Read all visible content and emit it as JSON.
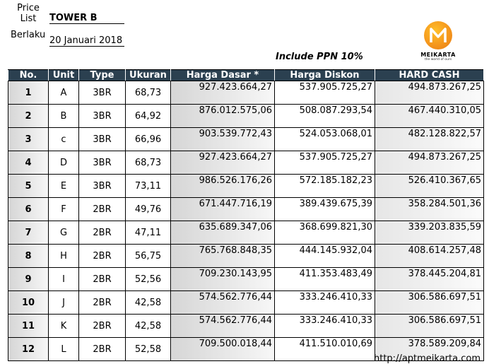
{
  "header": {
    "price_list_label_1": "Price",
    "price_list_label_2": "List",
    "tower": "TOWER B",
    "berlaku_label": "Berlaku",
    "date": "20 Januari 2018",
    "ppn_note": "Include PPN 10%"
  },
  "logo": {
    "letter": "M",
    "brand": "MEIKARTA",
    "tagline": "the world of ours",
    "color": "#f5971d"
  },
  "table": {
    "columns": [
      "No.",
      "Unit",
      "Type",
      "Ukuran",
      "Harga Dasar *",
      "Harga Diskon",
      "HARD CASH"
    ],
    "rows": [
      [
        "1",
        "A",
        "3BR",
        "68,73",
        "927.423.664,27",
        "537.905.725,27",
        "494.873.267,25"
      ],
      [
        "2",
        "B",
        "3BR",
        "64,92",
        "876.012.575,06",
        "508.087.293,54",
        "467.440.310,05"
      ],
      [
        "3",
        "c",
        "3BR",
        "66,96",
        "903.539.772,43",
        "524.053.068,01",
        "482.128.822,57"
      ],
      [
        "4",
        "D",
        "3BR",
        "68,73",
        "927.423.664,27",
        "537.905.725,27",
        "494.873.267,25"
      ],
      [
        "5",
        "E",
        "3BR",
        "73,11",
        "986.526.176,26",
        "572.185.182,23",
        "526.410.367,65"
      ],
      [
        "6",
        "F",
        "2BR",
        "49,76",
        "671.447.716,19",
        "389.439.675,39",
        "358.284.501,36"
      ],
      [
        "7",
        "G",
        "2BR",
        "47,11",
        "635.689.347,06",
        "368.699.821,30",
        "339.203.835,59"
      ],
      [
        "8",
        "H",
        "2BR",
        "56,75",
        "765.768.848,35",
        "444.145.932,04",
        "408.614.257,48"
      ],
      [
        "9",
        "I",
        "2BR",
        "52,56",
        "709.230.143,95",
        "411.353.483,49",
        "378.445.204,81"
      ],
      [
        "10",
        "J",
        "2BR",
        "42,58",
        "574.562.776,44",
        "333.246.410,33",
        "306.586.697,51"
      ],
      [
        "11",
        "K",
        "2BR",
        "42,58",
        "574.562.776,44",
        "333.246.410,33",
        "306.586.697,51"
      ],
      [
        "12",
        "L",
        "2BR",
        "52,58",
        "709.500.018,44",
        "411.510.010,69",
        "378.589.209,84"
      ]
    ]
  },
  "footer": {
    "url": "http://aptmeikarta.com"
  },
  "colors": {
    "header_bg": "#2b4050",
    "header_text": "#ffffff"
  }
}
